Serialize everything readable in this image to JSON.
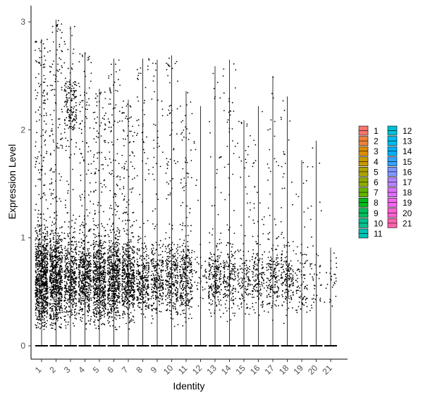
{
  "chart_data": {
    "type": "violin-jitter",
    "xlabel": "Identity",
    "ylabel": "Expression Level",
    "categories": [
      "1",
      "2",
      "3",
      "4",
      "5",
      "6",
      "7",
      "8",
      "9",
      "10",
      "11",
      "12",
      "13",
      "14",
      "15",
      "16",
      "17",
      "18",
      "19",
      "20",
      "21"
    ],
    "yticks": [
      0,
      1,
      2,
      3
    ],
    "ylim": [
      -0.15,
      3.1
    ],
    "max_expression": [
      2.84,
      3.02,
      2.96,
      2.72,
      2.38,
      2.66,
      2.28,
      2.66,
      2.65,
      2.69,
      2.36,
      2.22,
      2.59,
      2.65,
      2.09,
      2.22,
      2.5,
      2.31,
      1.72,
      1.9,
      0.91
    ],
    "point_density": [
      1.0,
      0.85,
      0.65,
      0.6,
      0.7,
      0.7,
      0.6,
      0.35,
      0.3,
      0.35,
      0.35,
      0.05,
      0.25,
      0.22,
      0.15,
      0.18,
      0.2,
      0.2,
      0.1,
      0.05,
      0.03
    ],
    "legend": {
      "entries": [
        {
          "label": "1",
          "color": "#F8766D"
        },
        {
          "label": "2",
          "color": "#EC8239"
        },
        {
          "label": "3",
          "color": "#DB8E00"
        },
        {
          "label": "4",
          "color": "#C79800"
        },
        {
          "label": "5",
          "color": "#AEA200"
        },
        {
          "label": "6",
          "color": "#8FAA00"
        },
        {
          "label": "7",
          "color": "#64B200"
        },
        {
          "label": "8",
          "color": "#00B81B"
        },
        {
          "label": "9",
          "color": "#00BD5C"
        },
        {
          "label": "10",
          "color": "#00C08D"
        },
        {
          "label": "11",
          "color": "#00C1B3"
        },
        {
          "label": "12",
          "color": "#00BFD4"
        },
        {
          "label": "13",
          "color": "#00BAEE"
        },
        {
          "label": "14",
          "color": "#00B0F6"
        },
        {
          "label": "15",
          "color": "#35A2FF"
        },
        {
          "label": "16",
          "color": "#7F96FF"
        },
        {
          "label": "17",
          "color": "#B385FF"
        },
        {
          "label": "18",
          "color": "#DC71FA"
        },
        {
          "label": "19",
          "color": "#EF67EB"
        },
        {
          "label": "20",
          "color": "#FD61D3"
        },
        {
          "label": "21",
          "color": "#FF65AE"
        }
      ],
      "placement": "right"
    }
  }
}
